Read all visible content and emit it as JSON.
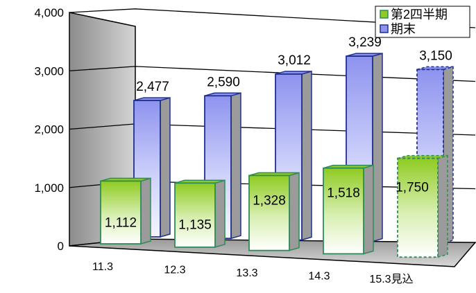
{
  "chart_data": {
    "type": "bar",
    "categories": [
      "11.3",
      "12.3",
      "13.3",
      "14.3",
      "15.3見込"
    ],
    "series": [
      {
        "name": "第2四半期",
        "values": [
          1112,
          1135,
          1328,
          1518,
          1750
        ],
        "color": "#7fbf1f",
        "edge": "#2e8b57"
      },
      {
        "name": "期末",
        "values": [
          2477,
          2590,
          3012,
          3239,
          3150
        ],
        "color": "#8f94f0",
        "edge": "#1f2f8f"
      }
    ],
    "data_labels": {
      "第2四半期": [
        "1,112",
        "1,135",
        "1,328",
        "1,518",
        "1,750"
      ],
      "期末": [
        "2,477",
        "2,590",
        "3,012",
        "3,239",
        "3,150"
      ]
    },
    "estimate_category": "15.3見込",
    "yticks": [
      "0",
      "1,000",
      "2,000",
      "3,000",
      "4,000"
    ],
    "ylim": [
      0,
      4000
    ],
    "title": "",
    "xlabel": "",
    "ylabel": "",
    "grid": true,
    "legend_position": "top-right",
    "projection": "3d"
  }
}
